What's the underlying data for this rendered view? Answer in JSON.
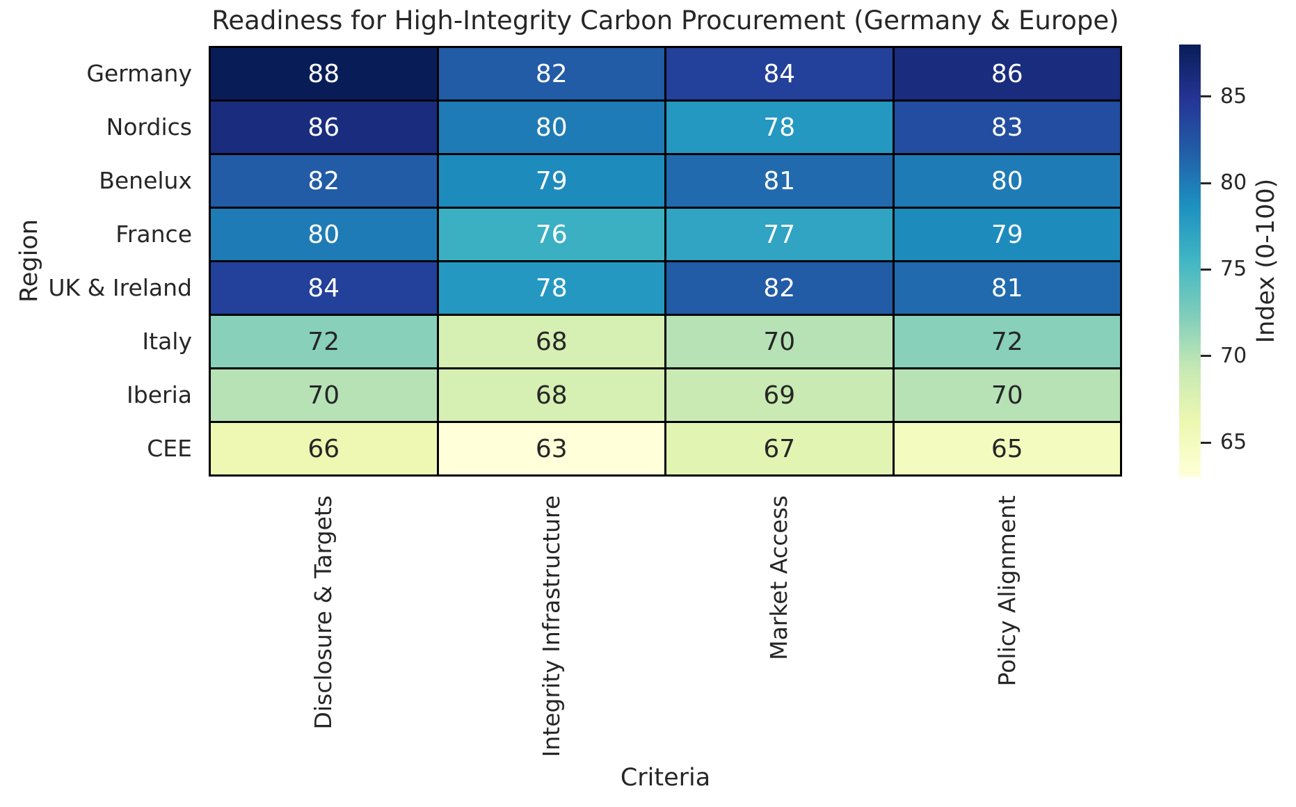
{
  "chart_data": {
    "type": "heatmap",
    "title": "Readiness for High-Integrity Carbon Procurement (Germany & Europe)",
    "xlabel": "Criteria",
    "ylabel": "Region",
    "rows": [
      "Germany",
      "Nordics",
      "Benelux",
      "France",
      "UK & Ireland",
      "Italy",
      "Iberia",
      "CEE"
    ],
    "columns": [
      "Disclosure & Targets",
      "Integrity Infrastructure",
      "Market Access",
      "Policy Alignment"
    ],
    "values": [
      [
        88,
        82,
        84,
        86
      ],
      [
        86,
        80,
        78,
        83
      ],
      [
        82,
        79,
        81,
        80
      ],
      [
        80,
        76,
        77,
        79
      ],
      [
        84,
        78,
        82,
        81
      ],
      [
        72,
        68,
        70,
        72
      ],
      [
        70,
        68,
        69,
        70
      ],
      [
        66,
        63,
        67,
        65
      ]
    ],
    "cell_colors": [
      [
        "#081d58",
        "#225ba6",
        "#23409a",
        "#1a2c7e"
      ],
      [
        "#1a2c7e",
        "#1f7bb5",
        "#2498c1",
        "#224da0"
      ],
      [
        "#225ba6",
        "#1e8bbd",
        "#216aae",
        "#1f7bb5"
      ],
      [
        "#1f7bb5",
        "#3bb0c3",
        "#30a4c2",
        "#1e8bbd"
      ],
      [
        "#23409a",
        "#2498c1",
        "#225ba6",
        "#216aae"
      ],
      [
        "#88d0ba",
        "#d6efb3",
        "#b6e2b6",
        "#88d0ba"
      ],
      [
        "#b6e2b6",
        "#d6efb3",
        "#caeab4",
        "#b6e2b6"
      ],
      [
        "#eef8b3",
        "#ffffd9",
        "#e2f4b2",
        "#f3fbbf"
      ]
    ],
    "annotation_colors": {
      "light": "#ffffff",
      "dark": "#262626",
      "light_text_min_value": 75
    },
    "grid_line_color": "#000000",
    "colorbar": {
      "label": "Index (0-100)",
      "ticks": [
        85,
        80,
        75,
        70,
        65
      ],
      "vmin": 63,
      "vmax": 88,
      "colormap": "YlGnBu",
      "gradient_top_to_bottom": [
        "#081d58",
        "#253494",
        "#225ea8",
        "#1d91c0",
        "#41b6c4",
        "#7fcdbb",
        "#c7e9b4",
        "#edf8b1",
        "#ffffd9"
      ]
    }
  }
}
